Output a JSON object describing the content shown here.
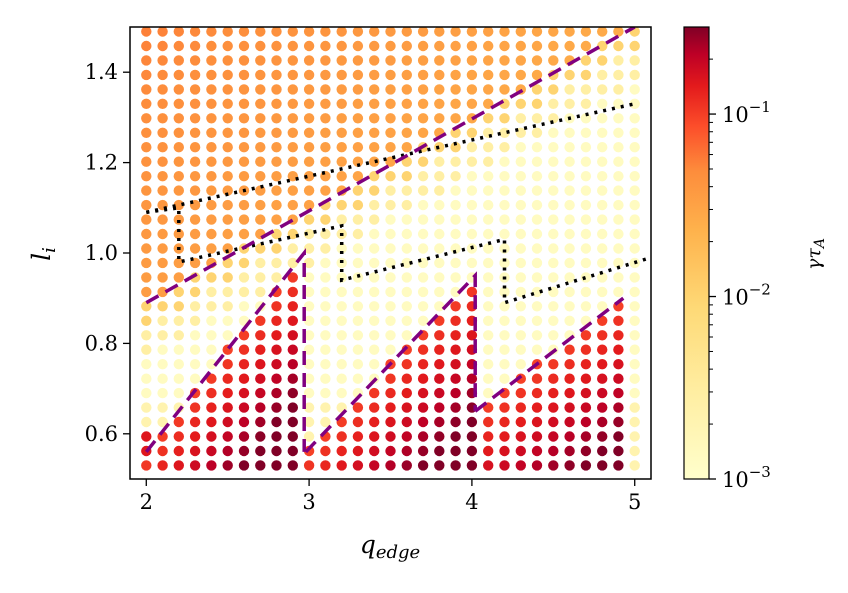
{
  "chart_data": {
    "type": "scatter",
    "title": "",
    "xlabel": "q_edge",
    "ylabel": "l_i",
    "xlim": [
      1.9,
      5.1
    ],
    "ylim": [
      0.5,
      1.5
    ],
    "x_ticks": [
      2,
      3,
      4,
      5
    ],
    "y_ticks": [
      0.6,
      0.8,
      1.0,
      1.2,
      1.4
    ],
    "x_tick_labels": [
      "2",
      "3",
      "4",
      "5"
    ],
    "y_tick_labels": [
      "0.6",
      "0.8",
      "1.0",
      "1.2",
      "1.4"
    ],
    "grid": false,
    "legend": "none",
    "colormap": "YlOrRd",
    "colorbar": {
      "label": "γτ_A",
      "scale": "log",
      "range": [
        0.001,
        0.3
      ],
      "tick_values": [
        0.001,
        0.01,
        0.1
      ],
      "tick_labels": [
        "10",
        "10",
        "10"
      ],
      "tick_exponents": [
        "−3",
        "−2",
        "−1"
      ]
    },
    "grid_samples": {
      "q_edge_range": [
        2.0,
        5.0
      ],
      "q_edge_step": 0.1,
      "l_i_range": [
        0.53,
        1.49
      ],
      "l_i_step": 0.032,
      "description": "points colored by growth rate"
    },
    "dashed_boundaries": [
      {
        "name": "",
        "color": "#800080",
        "points": [
          [
            2.0,
            0.89
          ],
          [
            5.0,
            1.5
          ]
        ]
      },
      {
        "name": "",
        "color": "#800080",
        "points": [
          [
            2.0,
            0.56
          ],
          [
            2.97,
            1.0
          ],
          [
            2.97,
            0.56
          ]
        ]
      },
      {
        "name": "",
        "color": "#800080",
        "points": [
          [
            2.98,
            0.56
          ],
          [
            4.02,
            0.95
          ],
          [
            4.02,
            0.65
          ]
        ]
      },
      {
        "name": "",
        "color": "#800080",
        "points": [
          [
            4.02,
            0.65
          ],
          [
            4.93,
            0.9
          ]
        ]
      }
    ],
    "dotted_boundary": {
      "color": "#000000",
      "points": [
        [
          2.0,
          1.09
        ],
        [
          2.2,
          1.1
        ],
        [
          2.2,
          0.98
        ],
        [
          3.2,
          1.06
        ],
        [
          3.2,
          0.94
        ],
        [
          4.2,
          1.03
        ],
        [
          4.2,
          0.89
        ],
        [
          5.1,
          0.99
        ]
      ],
      "upper_line": [
        [
          2.0,
          1.09
        ],
        [
          5.0,
          1.33
        ]
      ]
    }
  },
  "colors": {
    "low": "#ffffcc",
    "mid": "#fd8d3c",
    "high": "#800026",
    "dashed": "#800080",
    "dotted": "#000000"
  }
}
